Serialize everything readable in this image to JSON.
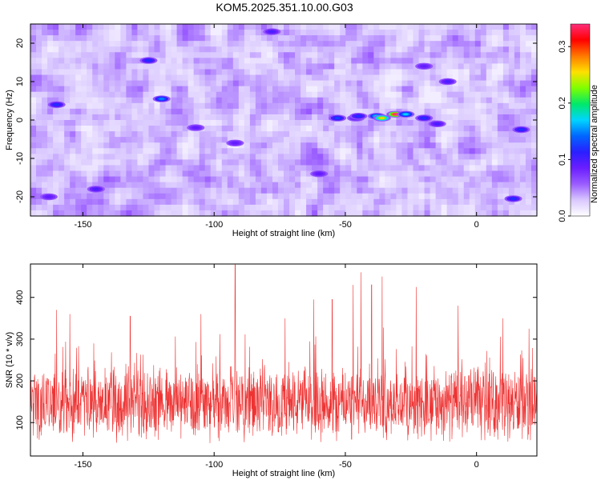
{
  "figure": {
    "title": "KOM5.2025.351.10.00.G03"
  },
  "colors": {
    "snr_line": "#ee3333",
    "spectrogram_background": "#ffffff",
    "axis": "#000000"
  },
  "colormap": {
    "name": "rainbow",
    "stops": [
      "#ffffff",
      "#d9c8ff",
      "#9a5cff",
      "#6a1eff",
      "#2a1fff",
      "#0066ff",
      "#00d5ff",
      "#00e86a",
      "#7fff00",
      "#ffe000",
      "#ff7a00",
      "#ff0000",
      "#ff2d7a"
    ]
  },
  "chart_data": [
    {
      "id": "spectrogram",
      "type": "heatmap",
      "xlabel": "Height of straight line (km)",
      "ylabel": "Frequency (Hz)",
      "xlim": [
        -170,
        23
      ],
      "ylim": [
        -25,
        25
      ],
      "xticks": [
        -150,
        -100,
        -50,
        0
      ],
      "yticks": [
        -20,
        -10,
        0,
        10,
        20
      ],
      "colorbar": {
        "label": "Normalized spectral amplitude",
        "range": [
          0.0,
          0.34
        ],
        "ticks": [
          0.0,
          0.1,
          0.2,
          0.3
        ]
      },
      "background_level": 0.06,
      "features": [
        {
          "x": -53,
          "y": 0.5,
          "value": 0.13
        },
        {
          "x": -46,
          "y": 0.5,
          "value": 0.09
        },
        {
          "x": -45,
          "y": 1.0,
          "value": 0.12
        },
        {
          "x": -38,
          "y": 1.0,
          "value": 0.18
        },
        {
          "x": -36,
          "y": 0.5,
          "value": 0.26
        },
        {
          "x": -31,
          "y": 1.5,
          "value": 0.34
        },
        {
          "x": -27,
          "y": 1.5,
          "value": 0.17
        },
        {
          "x": -20,
          "y": 0.5,
          "value": 0.12
        },
        {
          "x": -15,
          "y": -1.0,
          "value": 0.1
        },
        {
          "x": -120,
          "y": 5.5,
          "value": 0.15
        },
        {
          "x": -160,
          "y": 4.0,
          "value": 0.12
        },
        {
          "x": -125,
          "y": 15.5,
          "value": 0.12
        },
        {
          "x": -78,
          "y": 23.0,
          "value": 0.1
        },
        {
          "x": -107,
          "y": -2.0,
          "value": 0.09
        },
        {
          "x": -92,
          "y": -6.0,
          "value": 0.09
        },
        {
          "x": 17,
          "y": -2.5,
          "value": 0.12
        },
        {
          "x": -11,
          "y": 10.0,
          "value": 0.1
        },
        {
          "x": 14,
          "y": -20.5,
          "value": 0.12
        },
        {
          "x": -163,
          "y": -20.0,
          "value": 0.09
        },
        {
          "x": -145,
          "y": -18.0,
          "value": 0.1
        },
        {
          "x": -20,
          "y": 14.0,
          "value": 0.09
        },
        {
          "x": -60,
          "y": -14.0,
          "value": 0.09
        }
      ]
    },
    {
      "id": "snr",
      "type": "line",
      "xlabel": "Height of straight line (km)",
      "ylabel": "SNR (10 * v/v)",
      "xlim": [
        -170,
        23
      ],
      "ylim": [
        20,
        480
      ],
      "xticks": [
        -150,
        -100,
        -50,
        0
      ],
      "yticks": [
        100,
        200,
        300,
        400
      ],
      "series": [
        {
          "baseline": 145,
          "spread": 80,
          "peaks": [
            {
              "x": -160,
              "y": 370
            },
            {
              "x": -155,
              "y": 360
            },
            {
              "x": -132,
              "y": 355
            },
            {
              "x": -105,
              "y": 360
            },
            {
              "x": -92,
              "y": 478
            },
            {
              "x": -73,
              "y": 350
            },
            {
              "x": -62,
              "y": 395
            },
            {
              "x": -55,
              "y": 395
            },
            {
              "x": -47,
              "y": 430
            },
            {
              "x": -44,
              "y": 460
            },
            {
              "x": -40,
              "y": 430
            },
            {
              "x": -36,
              "y": 450
            },
            {
              "x": -23,
              "y": 425
            },
            {
              "x": -7,
              "y": 380
            },
            {
              "x": 10,
              "y": 350
            },
            {
              "x": 20,
              "y": 325
            }
          ]
        }
      ]
    }
  ]
}
